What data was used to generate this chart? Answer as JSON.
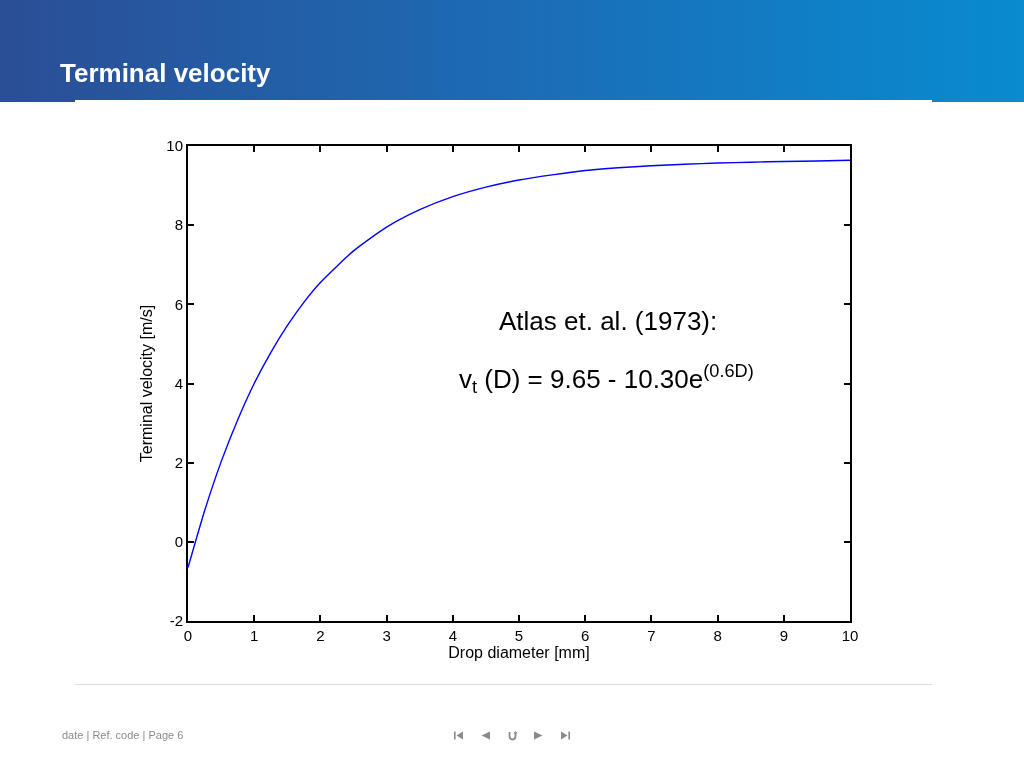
{
  "chart_data": {
    "type": "line",
    "title": "Terminal velocity",
    "xlabel": "Drop diameter [mm]",
    "ylabel": "Terminal velocity [m/s]",
    "annotations": [
      "Atlas et. al. (1973):",
      "v$_{t}$ (D) = 9.65 - 10.30e$^{(0.6D)}$",
      "date | Ref. code | Page 6"
    ],
    "x": [
      0,
      0.25,
      0.5,
      0.75,
      1,
      1.25,
      1.5,
      1.75,
      2,
      2.5,
      3,
      3.5,
      4,
      4.5,
      5,
      5.5,
      6,
      6.5,
      7,
      7.5,
      8,
      8.5,
      9,
      9.5,
      10
    ],
    "values": [
      -0.65,
      0.78,
      2.02,
      3.08,
      4.0,
      4.78,
      5.46,
      6.05,
      6.55,
      7.35,
      7.95,
      8.39,
      8.72,
      8.96,
      9.14,
      9.27,
      9.38,
      9.45,
      9.5,
      9.54,
      9.57,
      9.59,
      9.61,
      9.62,
      9.64
    ],
    "color": "#0000ff",
    "line_style": "solid",
    "xlim": [
      0,
      10
    ],
    "xticks": [
      0,
      1,
      2,
      3,
      4,
      5,
      6,
      7,
      8,
      9,
      10
    ],
    "ylim": [
      -2,
      10
    ],
    "yticks": [
      -2,
      0,
      2,
      4,
      6,
      8,
      10
    ]
  }
}
